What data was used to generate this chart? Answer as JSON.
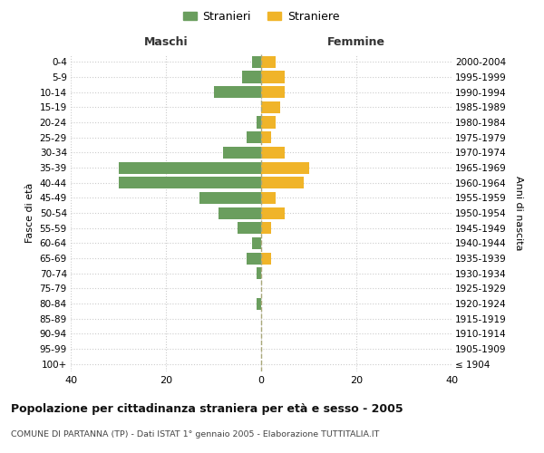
{
  "age_groups": [
    "100+",
    "95-99",
    "90-94",
    "85-89",
    "80-84",
    "75-79",
    "70-74",
    "65-69",
    "60-64",
    "55-59",
    "50-54",
    "45-49",
    "40-44",
    "35-39",
    "30-34",
    "25-29",
    "20-24",
    "15-19",
    "10-14",
    "5-9",
    "0-4"
  ],
  "birth_years": [
    "≤ 1904",
    "1905-1909",
    "1910-1914",
    "1915-1919",
    "1920-1924",
    "1925-1929",
    "1930-1934",
    "1935-1939",
    "1940-1944",
    "1945-1949",
    "1950-1954",
    "1955-1959",
    "1960-1964",
    "1965-1969",
    "1970-1974",
    "1975-1979",
    "1980-1984",
    "1985-1989",
    "1990-1994",
    "1995-1999",
    "2000-2004"
  ],
  "maschi": [
    0,
    0,
    0,
    0,
    1,
    0,
    1,
    3,
    2,
    5,
    9,
    13,
    30,
    30,
    8,
    3,
    1,
    0,
    10,
    4,
    2
  ],
  "femmine": [
    0,
    0,
    0,
    0,
    0,
    0,
    0,
    2,
    0,
    2,
    5,
    3,
    9,
    10,
    5,
    2,
    3,
    4,
    5,
    5,
    3
  ],
  "color_maschi": "#6a9e5e",
  "color_femmine": "#f0b429",
  "title": "Popolazione per cittadinanza straniera per età e sesso - 2005",
  "subtitle": "COMUNE DI PARTANNA (TP) - Dati ISTAT 1° gennaio 2005 - Elaborazione TUTTITALIA.IT",
  "xlabel_left": "Maschi",
  "xlabel_right": "Femmine",
  "ylabel_left": "Fasce di età",
  "ylabel_right": "Anni di nascita",
  "legend_maschi": "Stranieri",
  "legend_femmine": "Straniere",
  "xlim": 40,
  "background_color": "#ffffff",
  "grid_color": "#cccccc"
}
